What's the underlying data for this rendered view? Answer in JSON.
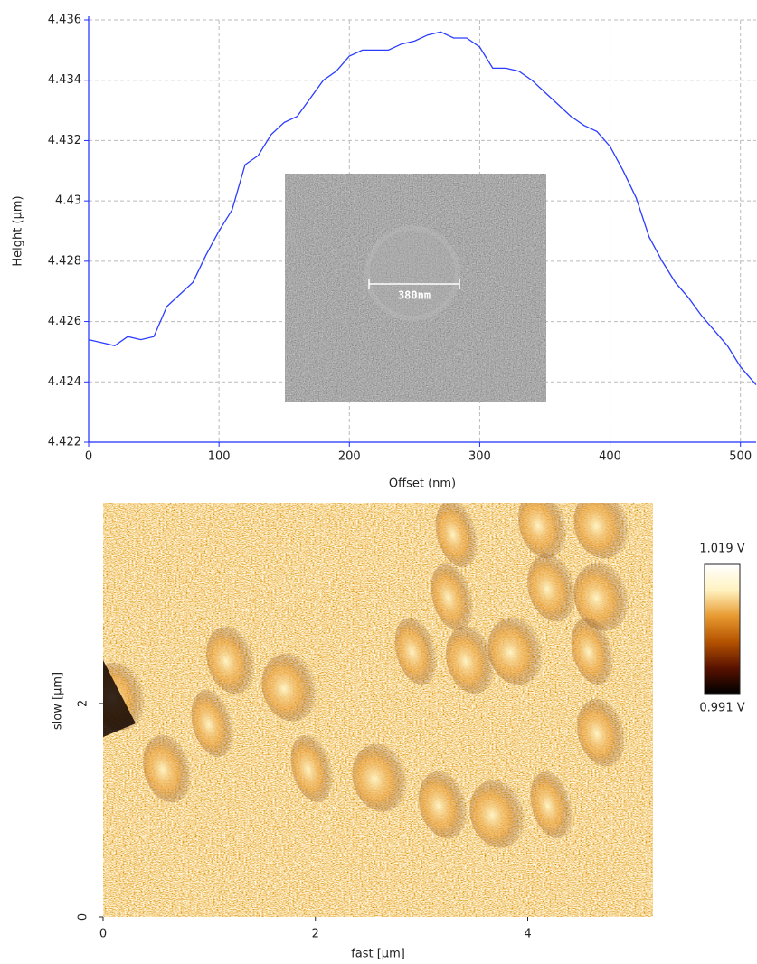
{
  "chart_data": [
    {
      "type": "line",
      "xlabel": "Offset (nm)",
      "ylabel": "Height (µm)",
      "x": [
        0,
        10,
        20,
        30,
        40,
        50,
        60,
        70,
        80,
        90,
        100,
        110,
        120,
        130,
        140,
        150,
        160,
        170,
        180,
        190,
        200,
        210,
        220,
        230,
        240,
        250,
        260,
        270,
        280,
        290,
        300,
        310,
        320,
        330,
        340,
        350,
        360,
        370,
        380,
        390,
        400,
        410,
        420,
        430,
        440,
        450,
        460,
        470,
        480,
        490,
        500,
        512
      ],
      "values": [
        4.4254,
        4.4253,
        4.4252,
        4.4255,
        4.4254,
        4.4255,
        4.4265,
        4.4269,
        4.4273,
        4.4282,
        4.429,
        4.4297,
        4.4312,
        4.4315,
        4.4322,
        4.4326,
        4.4328,
        4.4334,
        4.434,
        4.4343,
        4.4348,
        4.435,
        4.435,
        4.435,
        4.4352,
        4.4353,
        4.4355,
        4.4356,
        4.4354,
        4.4354,
        4.4351,
        4.4344,
        4.4344,
        4.4343,
        4.434,
        4.4336,
        4.4332,
        4.4328,
        4.4325,
        4.4323,
        4.4318,
        4.431,
        4.4301,
        4.4288,
        4.428,
        4.4273,
        4.4268,
        4.4262,
        4.4257,
        4.4252,
        4.4245,
        4.4239
      ],
      "color": "#2b3cff",
      "xlim": [
        0,
        512
      ],
      "ylim": [
        4.422,
        4.436
      ],
      "xticks": [
        0,
        100,
        200,
        300,
        400,
        500
      ],
      "yticks": [
        4.422,
        4.424,
        4.426,
        4.428,
        4.43,
        4.432,
        4.434,
        4.436
      ],
      "grid": true,
      "inset_label": "380nm"
    },
    {
      "type": "image",
      "xlabel": "fast [µm]",
      "ylabel": "slow [µm]",
      "xlim": [
        0,
        5.18
      ],
      "ylim": [
        0,
        3.88
      ],
      "xticks": [
        0,
        2,
        4
      ],
      "yticks": [
        0,
        2
      ],
      "colormap": [
        "#000000",
        "#5a1200",
        "#b45200",
        "#e89a30",
        "#fff2c0",
        "#ffffff"
      ],
      "clim": [
        0.991,
        1.019
      ],
      "colorbar_ticks": [
        {
          "value": 0.991,
          "label": "0.991 V"
        },
        {
          "value": 1.019,
          "label": "1.019 V"
        }
      ]
    }
  ]
}
